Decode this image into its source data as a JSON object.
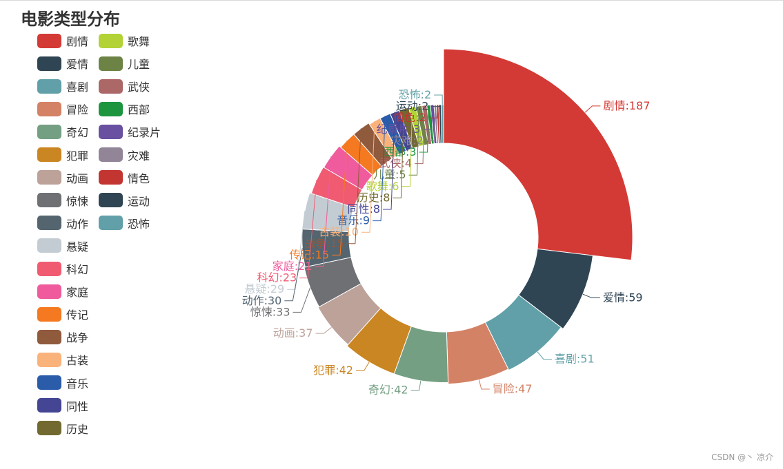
{
  "chart_data": {
    "type": "pie",
    "subtype": "donut",
    "title": "电影类型分布",
    "legend_position": "left",
    "label_format": "{name}:{value}",
    "slices": [
      {
        "name": "剧情",
        "value": 187,
        "color": "#d43a35"
      },
      {
        "name": "爱情",
        "value": 59,
        "color": "#2f4554"
      },
      {
        "name": "喜剧",
        "value": 51,
        "color": "#61a0a8"
      },
      {
        "name": "冒险",
        "value": 47,
        "color": "#d48265"
      },
      {
        "name": "奇幻",
        "value": 42,
        "color": "#749f83"
      },
      {
        "name": "犯罪",
        "value": 42,
        "color": "#ca8622"
      },
      {
        "name": "动画",
        "value": 37,
        "color": "#bda29a"
      },
      {
        "name": "惊悚",
        "value": 33,
        "color": "#6e7074"
      },
      {
        "name": "动作",
        "value": 30,
        "color": "#546570"
      },
      {
        "name": "悬疑",
        "value": 29,
        "color": "#c4ccd3"
      },
      {
        "name": "科幻",
        "value": 23,
        "color": "#f05b72"
      },
      {
        "name": "家庭",
        "value": 21,
        "color": "#ef5b9c"
      },
      {
        "name": "传记",
        "value": 15,
        "color": "#f47920"
      },
      {
        "name": "战争",
        "value": 15,
        "color": "#905a3d"
      },
      {
        "name": "古装",
        "value": 10,
        "color": "#fab27b"
      },
      {
        "name": "音乐",
        "value": 9,
        "color": "#2a5caa"
      },
      {
        "name": "同性",
        "value": 8,
        "color": "#444693"
      },
      {
        "name": "历史",
        "value": 8,
        "color": "#726930"
      },
      {
        "name": "歌舞",
        "value": 6,
        "color": "#b2d235"
      },
      {
        "name": "儿童",
        "value": 5,
        "color": "#6d8346"
      },
      {
        "name": "武侠",
        "value": 4,
        "color": "#ac6767"
      },
      {
        "name": "西部",
        "value": 3,
        "color": "#1d953f"
      },
      {
        "name": "纪录片",
        "value": 3,
        "color": "#6950a1"
      },
      {
        "name": "灾难",
        "value": 2,
        "color": "#918597"
      },
      {
        "name": "情色",
        "value": 2,
        "color": "#c23531"
      },
      {
        "name": "运动",
        "value": 2,
        "color": "#2f4554"
      },
      {
        "name": "恐怖",
        "value": 2,
        "color": "#61a0a8"
      }
    ]
  },
  "watermark": "CSDN @丶 凉介"
}
